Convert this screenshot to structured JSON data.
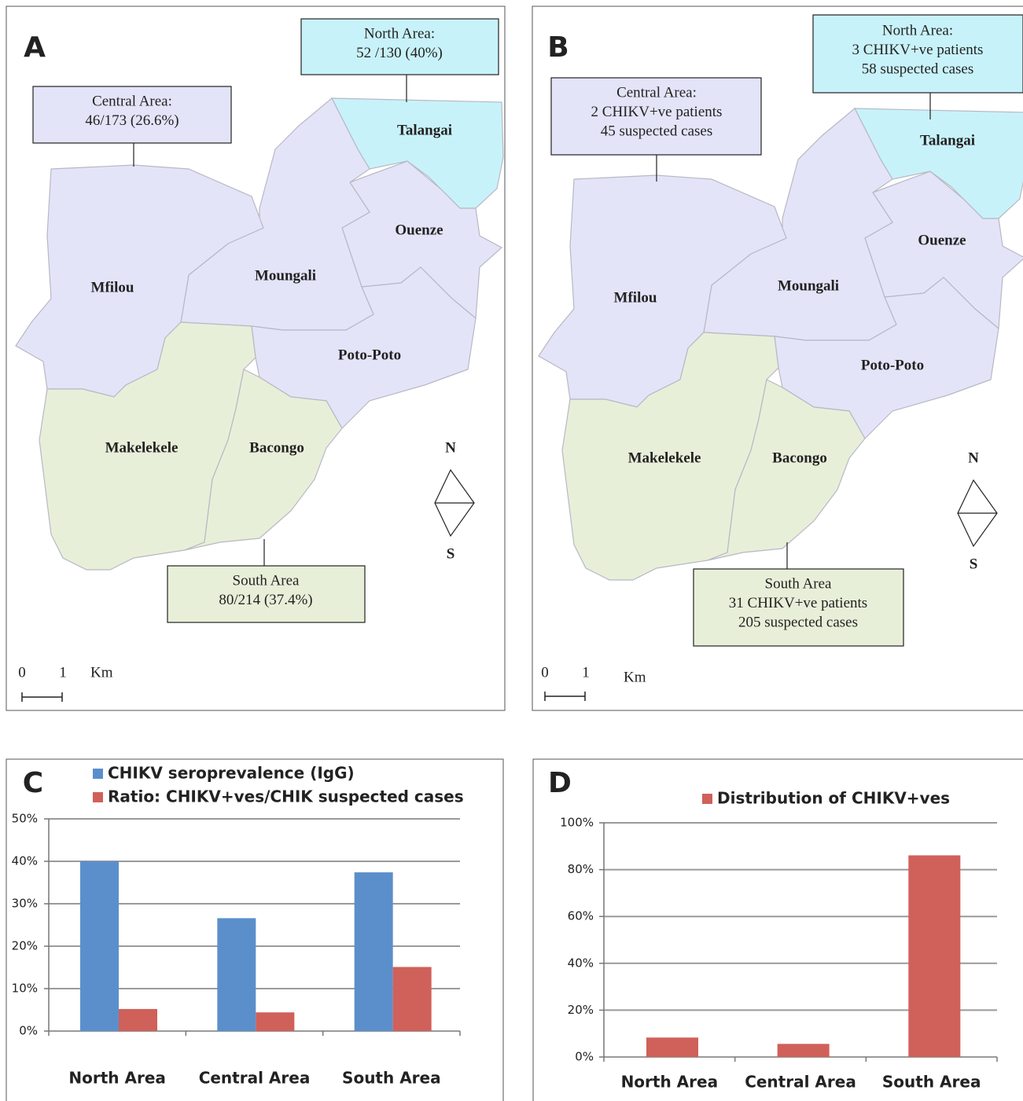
{
  "maps": [
    {
      "panel": "A",
      "north_area": [
        "North Area:",
        "52 /130 (40%)"
      ],
      "central_area": [
        "Central Area:",
        "46/173 (26.6%)"
      ],
      "south_area": [
        "South Area",
        "80/214 (37.4%)"
      ],
      "districts": [
        "Talangai",
        "Ouenze",
        "Moungali",
        "Mfilou",
        "Poto-Poto",
        "Makelekele",
        "Bacongo"
      ],
      "compass": [
        "N",
        "S"
      ],
      "scale": [
        "0",
        "1",
        "Km"
      ]
    },
    {
      "panel": "B",
      "north_area": [
        "North Area:",
        "3 CHIKV+ve patients",
        "58 suspected cases"
      ],
      "central_area": [
        "Central Area:",
        "2 CHIKV+ve patients",
        "45 suspected cases"
      ],
      "south_area": [
        "South Area",
        "31 CHIKV+ve patients",
        "205 suspected cases"
      ],
      "districts": [
        "Talangai",
        "Ouenze",
        "Moungali",
        "Mfilou",
        "Poto-Poto",
        "Makelekele",
        "Bacongo"
      ],
      "compass": [
        "N",
        "S"
      ],
      "scale": [
        "0",
        "1",
        "Km"
      ]
    }
  ],
  "chart_data": [
    {
      "type": "bar",
      "panel": "C",
      "categories": [
        "North Area",
        "Central Area",
        "South Area"
      ],
      "series": [
        {
          "name": "CHIKV seroprevalence (IgG)",
          "color": "#5b8fcb",
          "values": [
            40,
            26.6,
            37.4
          ]
        },
        {
          "name": "Ratio: CHIKV+ves/CHIK suspected cases",
          "color": "#d0605a",
          "values": [
            5.2,
            4.4,
            15.1
          ]
        }
      ],
      "ylim": [
        0,
        50
      ],
      "yticks": [
        {
          "value": 0,
          "label": "0%"
        },
        {
          "value": 10,
          "label": "10%"
        },
        {
          "value": 20,
          "label": "20%"
        },
        {
          "value": 30,
          "label": "30%"
        },
        {
          "value": 40,
          "label": "40%"
        },
        {
          "value": 50,
          "label": "50%"
        }
      ],
      "grid": true
    },
    {
      "type": "bar",
      "panel": "D",
      "categories": [
        "North Area",
        "Central Area",
        "South Area"
      ],
      "series": [
        {
          "name": "Distribution of CHIKV+ves",
          "color": "#d0605a",
          "values": [
            8.3,
            5.6,
            86.1
          ]
        }
      ],
      "ylim": [
        0,
        100
      ],
      "yticks": [
        {
          "value": 0,
          "label": "0%"
        },
        {
          "value": 20,
          "label": "20%"
        },
        {
          "value": 40,
          "label": "40%"
        },
        {
          "value": 60,
          "label": "60%"
        },
        {
          "value": 80,
          "label": "80%"
        },
        {
          "value": 100,
          "label": "100%"
        }
      ],
      "grid": true
    }
  ]
}
